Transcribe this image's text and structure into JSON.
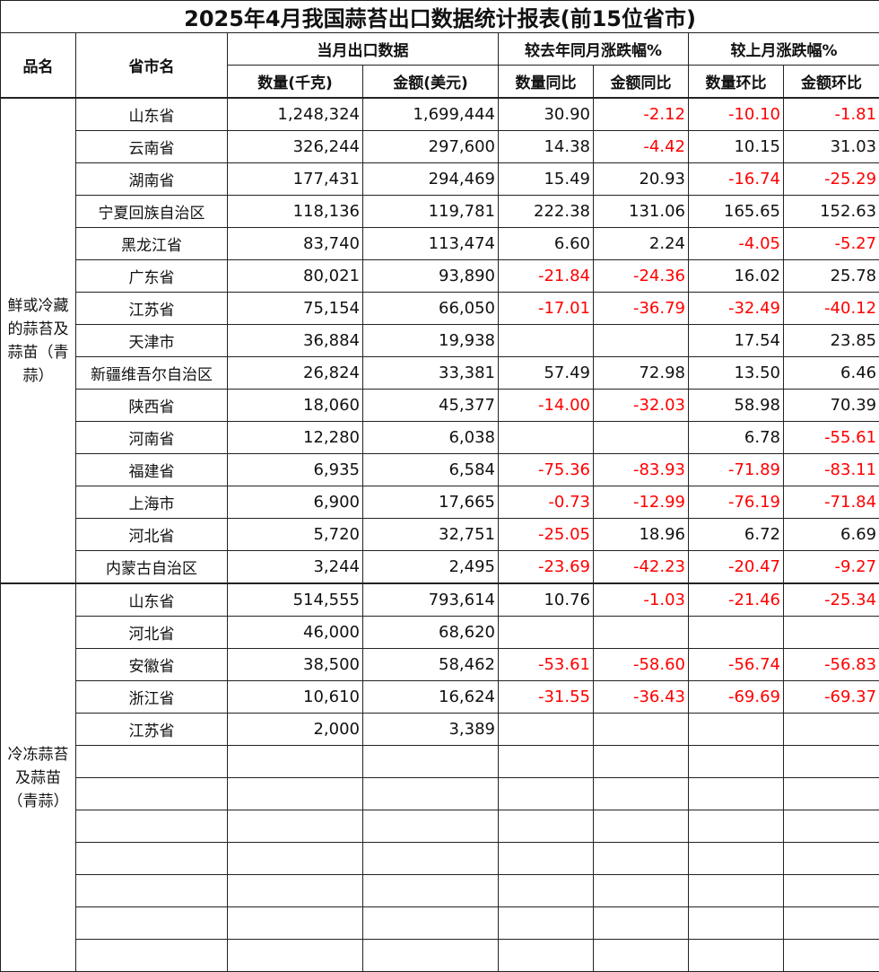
{
  "title": "2025年4月我国蒜苔出口数据统计报表(前15位省市)",
  "headers": {
    "product": "品名",
    "province": "省市名",
    "group_current": "当月出口数据",
    "group_yoy": "较去年同月涨跌幅%",
    "group_mom": "较上月涨跌幅%",
    "qty": "数量(千克)",
    "amount": "金额(美元)",
    "qty_yoy": "数量同比",
    "amount_yoy": "金额同比",
    "qty_mom": "数量环比",
    "amount_mom": "金额环比"
  },
  "negative_color": "#ff0000",
  "groups": [
    {
      "name": "鲜或冷藏的蒜苔及蒜苗（青蒜）",
      "rows": [
        [
          "山东省",
          "1,248,324",
          "1,699,444",
          "30.90",
          "-2.12",
          "-10.10",
          "-1.81"
        ],
        [
          "云南省",
          "326,244",
          "297,600",
          "14.38",
          "-4.42",
          "10.15",
          "31.03"
        ],
        [
          "湖南省",
          "177,431",
          "294,469",
          "15.49",
          "20.93",
          "-16.74",
          "-25.29"
        ],
        [
          "宁夏回族自治区",
          "118,136",
          "119,781",
          "222.38",
          "131.06",
          "165.65",
          "152.63"
        ],
        [
          "黑龙江省",
          "83,740",
          "113,474",
          "6.60",
          "2.24",
          "-4.05",
          "-5.27"
        ],
        [
          "广东省",
          "80,021",
          "93,890",
          "-21.84",
          "-24.36",
          "16.02",
          "25.78"
        ],
        [
          "江苏省",
          "75,154",
          "66,050",
          "-17.01",
          "-36.79",
          "-32.49",
          "-40.12"
        ],
        [
          "天津市",
          "36,884",
          "19,938",
          "",
          "",
          "17.54",
          "23.85"
        ],
        [
          "新疆维吾尔自治区",
          "26,824",
          "33,381",
          "57.49",
          "72.98",
          "13.50",
          "6.46"
        ],
        [
          "陕西省",
          "18,060",
          "45,377",
          "-14.00",
          "-32.03",
          "58.98",
          "70.39"
        ],
        [
          "河南省",
          "12,280",
          "6,038",
          "",
          "",
          "6.78",
          "-55.61"
        ],
        [
          "福建省",
          "6,935",
          "6,584",
          "-75.36",
          "-83.93",
          "-71.89",
          "-83.11"
        ],
        [
          "上海市",
          "6,900",
          "17,665",
          "-0.73",
          "-12.99",
          "-76.19",
          "-71.84"
        ],
        [
          "河北省",
          "5,720",
          "32,751",
          "-25.05",
          "18.96",
          "6.72",
          "6.69"
        ],
        [
          "内蒙古自治区",
          "3,244",
          "2,495",
          "-23.69",
          "-42.23",
          "-20.47",
          "-9.27"
        ]
      ]
    },
    {
      "name": "冷冻蒜苔及蒜苗（青蒜）",
      "rows": [
        [
          "山东省",
          "514,555",
          "793,614",
          "10.76",
          "-1.03",
          "-21.46",
          "-25.34"
        ],
        [
          "河北省",
          "46,000",
          "68,620",
          "",
          "",
          "",
          ""
        ],
        [
          "安徽省",
          "38,500",
          "58,462",
          "-53.61",
          "-58.60",
          "-56.74",
          "-56.83"
        ],
        [
          "浙江省",
          "10,610",
          "16,624",
          "-31.55",
          "-36.43",
          "-69.69",
          "-69.37"
        ],
        [
          "江苏省",
          "2,000",
          "3,389",
          "",
          "",
          "",
          ""
        ],
        [
          "",
          "",
          "",
          "",
          "",
          "",
          ""
        ],
        [
          "",
          "",
          "",
          "",
          "",
          "",
          ""
        ],
        [
          "",
          "",
          "",
          "",
          "",
          "",
          ""
        ],
        [
          "",
          "",
          "",
          "",
          "",
          "",
          ""
        ],
        [
          "",
          "",
          "",
          "",
          "",
          "",
          ""
        ],
        [
          "",
          "",
          "",
          "",
          "",
          "",
          ""
        ],
        [
          "",
          "",
          "",
          "",
          "",
          "",
          ""
        ]
      ]
    }
  ]
}
